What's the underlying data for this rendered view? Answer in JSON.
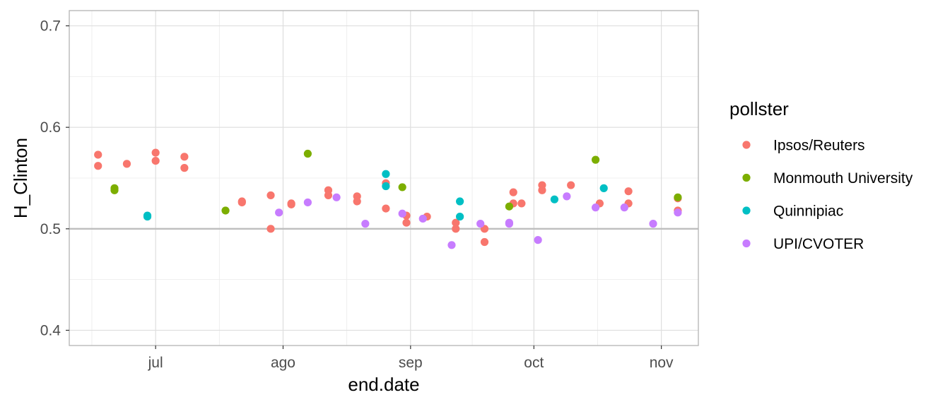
{
  "chart_data": {
    "type": "scatter",
    "xlabel": "end.date",
    "ylabel": "H_Clinton",
    "x_axis": {
      "range": [
        "2016-06-10",
        "2016-11-10"
      ],
      "ticks": [
        {
          "date": "2016-07-01",
          "label": "jul"
        },
        {
          "date": "2016-08-01",
          "label": "ago"
        },
        {
          "date": "2016-09-01",
          "label": "sep"
        },
        {
          "date": "2016-10-01",
          "label": "oct"
        },
        {
          "date": "2016-11-01",
          "label": "nov"
        }
      ]
    },
    "y_axis": {
      "range": [
        0.385,
        0.715
      ],
      "ticks": [
        0.4,
        0.5,
        0.6,
        0.7
      ],
      "tick_labels": [
        "0.4",
        "0.5",
        "0.6",
        "0.7"
      ],
      "minor_ticks": [
        0.45,
        0.55,
        0.65
      ]
    },
    "reference_line": {
      "y": 0.5,
      "color": "#bebebe"
    },
    "grid": true,
    "legend": {
      "title": "pollster",
      "position": "right"
    },
    "series": [
      {
        "name": "Ipsos/Reuters",
        "color": "#F8766D",
        "points": [
          {
            "x": "2016-06-17",
            "y": 0.573
          },
          {
            "x": "2016-06-17",
            "y": 0.562
          },
          {
            "x": "2016-06-24",
            "y": 0.564
          },
          {
            "x": "2016-07-01",
            "y": 0.575
          },
          {
            "x": "2016-07-01",
            "y": 0.567
          },
          {
            "x": "2016-07-08",
            "y": 0.571
          },
          {
            "x": "2016-07-08",
            "y": 0.56
          },
          {
            "x": "2016-07-22",
            "y": 0.527
          },
          {
            "x": "2016-07-22",
            "y": 0.526
          },
          {
            "x": "2016-07-29",
            "y": 0.533
          },
          {
            "x": "2016-07-29",
            "y": 0.5
          },
          {
            "x": "2016-08-03",
            "y": 0.525
          },
          {
            "x": "2016-08-03",
            "y": 0.524
          },
          {
            "x": "2016-08-12",
            "y": 0.538
          },
          {
            "x": "2016-08-12",
            "y": 0.533
          },
          {
            "x": "2016-08-19",
            "y": 0.532
          },
          {
            "x": "2016-08-19",
            "y": 0.527
          },
          {
            "x": "2016-08-26",
            "y": 0.545
          },
          {
            "x": "2016-08-26",
            "y": 0.52
          },
          {
            "x": "2016-08-31",
            "y": 0.513
          },
          {
            "x": "2016-08-31",
            "y": 0.506
          },
          {
            "x": "2016-09-05",
            "y": 0.512
          },
          {
            "x": "2016-09-12",
            "y": 0.506
          },
          {
            "x": "2016-09-12",
            "y": 0.5
          },
          {
            "x": "2016-09-19",
            "y": 0.5
          },
          {
            "x": "2016-09-19",
            "y": 0.487
          },
          {
            "x": "2016-09-26",
            "y": 0.536
          },
          {
            "x": "2016-09-26",
            "y": 0.525
          },
          {
            "x": "2016-09-28",
            "y": 0.525
          },
          {
            "x": "2016-10-03",
            "y": 0.543
          },
          {
            "x": "2016-10-03",
            "y": 0.538
          },
          {
            "x": "2016-10-10",
            "y": 0.543
          },
          {
            "x": "2016-10-17",
            "y": 0.525
          },
          {
            "x": "2016-10-24",
            "y": 0.537
          },
          {
            "x": "2016-10-24",
            "y": 0.525
          },
          {
            "x": "2016-11-05",
            "y": 0.53
          },
          {
            "x": "2016-11-05",
            "y": 0.518
          }
        ]
      },
      {
        "name": "Monmouth University",
        "color": "#7CAE00",
        "points": [
          {
            "x": "2016-06-21",
            "y": 0.54
          },
          {
            "x": "2016-06-21",
            "y": 0.538
          },
          {
            "x": "2016-07-18",
            "y": 0.518
          },
          {
            "x": "2016-08-07",
            "y": 0.574
          },
          {
            "x": "2016-08-30",
            "y": 0.541
          },
          {
            "x": "2016-09-25",
            "y": 0.522
          },
          {
            "x": "2016-10-16",
            "y": 0.568
          },
          {
            "x": "2016-11-05",
            "y": 0.531
          }
        ]
      },
      {
        "name": "Quinnipiac",
        "color": "#00BFC4",
        "points": [
          {
            "x": "2016-06-29",
            "y": 0.513
          },
          {
            "x": "2016-06-29",
            "y": 0.512
          },
          {
            "x": "2016-08-26",
            "y": 0.554
          },
          {
            "x": "2016-08-26",
            "y": 0.542
          },
          {
            "x": "2016-09-13",
            "y": 0.527
          },
          {
            "x": "2016-09-13",
            "y": 0.512
          },
          {
            "x": "2016-10-06",
            "y": 0.529
          },
          {
            "x": "2016-10-18",
            "y": 0.54
          }
        ]
      },
      {
        "name": "UPI/CVOTER",
        "color": "#C77CFF",
        "points": [
          {
            "x": "2016-07-31",
            "y": 0.516
          },
          {
            "x": "2016-08-07",
            "y": 0.526
          },
          {
            "x": "2016-08-14",
            "y": 0.531
          },
          {
            "x": "2016-08-21",
            "y": 0.505
          },
          {
            "x": "2016-08-30",
            "y": 0.515
          },
          {
            "x": "2016-09-04",
            "y": 0.51
          },
          {
            "x": "2016-09-11",
            "y": 0.484
          },
          {
            "x": "2016-09-18",
            "y": 0.505
          },
          {
            "x": "2016-09-25",
            "y": 0.505
          },
          {
            "x": "2016-09-25",
            "y": 0.506
          },
          {
            "x": "2016-10-02",
            "y": 0.489
          },
          {
            "x": "2016-10-09",
            "y": 0.532
          },
          {
            "x": "2016-10-16",
            "y": 0.521
          },
          {
            "x": "2016-10-23",
            "y": 0.521
          },
          {
            "x": "2016-10-30",
            "y": 0.505
          },
          {
            "x": "2016-11-05",
            "y": 0.516
          }
        ]
      }
    ]
  }
}
